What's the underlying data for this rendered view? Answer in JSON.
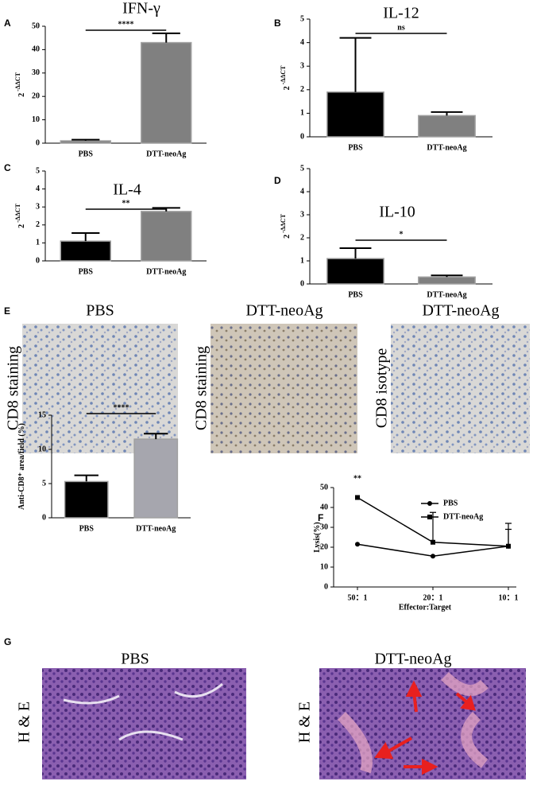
{
  "panel_labels": [
    "A",
    "B",
    "C",
    "D",
    "E",
    "F",
    "G"
  ],
  "chart_data": [
    {
      "type": "bar",
      "title": "IFN-γ",
      "ylabel": [
        "2",
        "-ΔΔCT"
      ],
      "categories": [
        "PBS",
        "DTT-neoAg"
      ],
      "values": [
        1,
        43
      ],
      "errors": [
        0.5,
        4
      ],
      "colors": [
        "#808080",
        "#808080"
      ],
      "ylim": [
        0,
        50
      ],
      "yticks": [
        0,
        10,
        20,
        30,
        40,
        50
      ],
      "significance": "****"
    },
    {
      "type": "bar",
      "title": "IL-12",
      "ylabel": [
        "2",
        "-ΔΔCT"
      ],
      "categories": [
        "PBS",
        "DTT-neoAg"
      ],
      "values": [
        1.9,
        0.9
      ],
      "errors": [
        2.3,
        0.15
      ],
      "colors": [
        "#000000",
        "#808080"
      ],
      "ylim": [
        0,
        5
      ],
      "yticks": [
        0,
        1,
        2,
        3,
        4,
        5
      ],
      "significance": "ns"
    },
    {
      "type": "bar",
      "title": "IL-4",
      "ylabel": [
        "2",
        "-ΔΔCT"
      ],
      "categories": [
        "PBS",
        "DTT-neoAg"
      ],
      "values": [
        1.1,
        2.75
      ],
      "errors": [
        0.45,
        0.2
      ],
      "colors": [
        "#000000",
        "#808080"
      ],
      "ylim": [
        0,
        5
      ],
      "yticks": [
        0,
        1,
        2,
        3,
        4,
        5
      ],
      "significance": "**"
    },
    {
      "type": "bar",
      "title": "IL-10",
      "ylabel": [
        "2",
        "-ΔΔCT"
      ],
      "categories": [
        "PBS",
        "DTT-neoAg"
      ],
      "values": [
        1.1,
        0.3
      ],
      "errors": [
        0.45,
        0.07
      ],
      "colors": [
        "#000000",
        "#808080"
      ],
      "ylim": [
        0,
        5
      ],
      "yticks": [
        0,
        1,
        2,
        3,
        4,
        5
      ],
      "significance": "*"
    },
    {
      "type": "bar",
      "ylabel": [
        "Anti-CD8⁺ area/field (%)"
      ],
      "categories": [
        "PBS",
        "DTT-neoAg"
      ],
      "values": [
        5.3,
        11.5
      ],
      "errors": [
        0.9,
        0.8
      ],
      "colors": [
        "#000000",
        "#a6a6ae"
      ],
      "ylim": [
        0,
        15
      ],
      "yticks": [
        0,
        5,
        10,
        15
      ],
      "significance": "****"
    },
    {
      "type": "line",
      "xlabel": "Effector:Target",
      "ylabel": [
        "Lysis(%)"
      ],
      "categories": [
        "50：1",
        "20：1",
        "10：1"
      ],
      "series": [
        {
          "name": "PBS",
          "color": "#000000",
          "marker": "circle",
          "values": [
            21.5,
            15.5,
            20.5
          ],
          "errors": [
            0,
            0,
            11.5
          ]
        },
        {
          "name": "DTT-neoAg",
          "color": "#000000",
          "marker": "square",
          "values": [
            45,
            22.5,
            20.5
          ],
          "errors": [
            0,
            15,
            8.5
          ]
        }
      ],
      "ylim": [
        0,
        50
      ],
      "yticks": [
        0,
        10,
        20,
        30,
        40,
        50
      ],
      "significance": "**"
    }
  ],
  "images": {
    "E": {
      "titles": [
        "PBS",
        "DTT-neoAg",
        "DTT-neoAg"
      ],
      "side_labels": [
        "CD8 staining",
        "CD8 staining",
        "CD8 isotype"
      ]
    },
    "G": {
      "titles": [
        "PBS",
        "DTT-neoAg"
      ],
      "side_labels": [
        "H & E",
        "H & E"
      ]
    }
  }
}
